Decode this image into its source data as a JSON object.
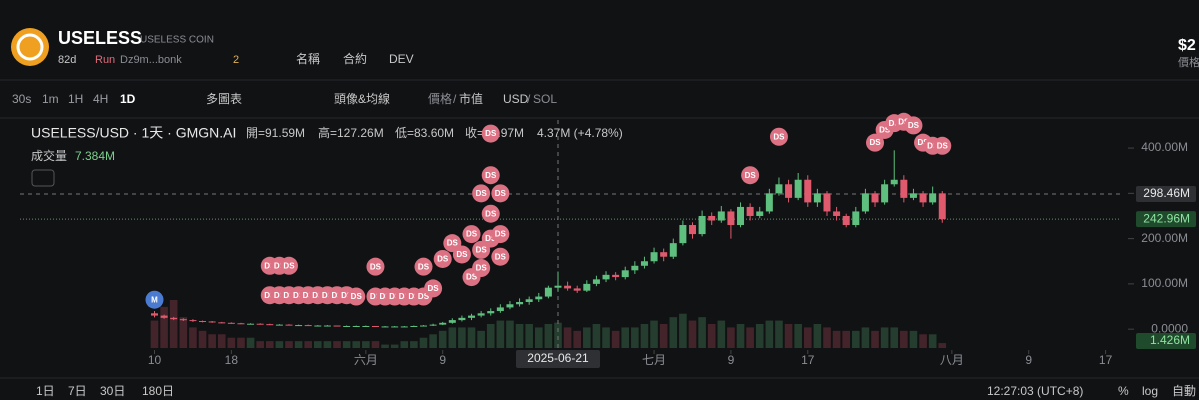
{
  "header": {
    "name": "USELESS",
    "fullname": "USELESS COIN",
    "age": "82d",
    "run": "Run",
    "address": "Dz9m...bonk",
    "holders": "2",
    "search_name": "名稱",
    "search_contract": "合約",
    "search_dev": "DEV",
    "price": "$2",
    "price_caption": "價格"
  },
  "toolbar": {
    "intervals": [
      "30s",
      "1m",
      "1H",
      "4H",
      "1D"
    ],
    "multi": "多圖表",
    "avatar": "頭像&均線",
    "price": "價格",
    "slash": "/",
    "mcap": "市值",
    "usd": "USD",
    "sol": "SOL"
  },
  "footer": {
    "ranges": [
      "1日",
      "7日",
      "30日",
      "180日"
    ],
    "time": "12:27:03 (UTC+8)",
    "percent": "%",
    "log": "log",
    "auto": "自動"
  },
  "chart_data": {
    "type": "candlestick",
    "title": "USELESS/USD · 1天 · GMGN.AI",
    "legend": {
      "open": "開=91.59M",
      "high": "高=127.26M",
      "low": "低=83.60M",
      "close": "收=95.97M",
      "change": "4.37M (+4.78%)",
      "volume_name": "成交量",
      "volume": "7.384M"
    },
    "up_color": "#5fbf7f",
    "down_color": "#e05a6e",
    "ohlc": [
      [
        35,
        40,
        26,
        30
      ],
      [
        30,
        32,
        23,
        25
      ],
      [
        25,
        27,
        20,
        22
      ],
      [
        22,
        24,
        18,
        20
      ],
      [
        20,
        22,
        16,
        18
      ],
      [
        18,
        19,
        15,
        17
      ],
      [
        17,
        18,
        14,
        15
      ],
      [
        15,
        16,
        13,
        14
      ],
      [
        14,
        15,
        12,
        13
      ],
      [
        13,
        14,
        11,
        12
      ],
      [
        12,
        13,
        11,
        12
      ],
      [
        12,
        13,
        10,
        11
      ],
      [
        11,
        12,
        9,
        10
      ],
      [
        10,
        11,
        9,
        10
      ],
      [
        10,
        11,
        8,
        9
      ],
      [
        9,
        10,
        8,
        9
      ],
      [
        9,
        10,
        7,
        8
      ],
      [
        8,
        9,
        7,
        8
      ],
      [
        8,
        9,
        7,
        8
      ],
      [
        8,
        8,
        6,
        7
      ],
      [
        7,
        8,
        6,
        7
      ],
      [
        7,
        8,
        6,
        7
      ],
      [
        7,
        8,
        6,
        7
      ],
      [
        7,
        7,
        5,
        6
      ],
      [
        6,
        7,
        5,
        6
      ],
      [
        6,
        7,
        5,
        6
      ],
      [
        6,
        7,
        5,
        6
      ],
      [
        6,
        8,
        5,
        7
      ],
      [
        7,
        9,
        6,
        8
      ],
      [
        8,
        12,
        7,
        10
      ],
      [
        10,
        16,
        9,
        14
      ],
      [
        14,
        24,
        12,
        20
      ],
      [
        20,
        30,
        17,
        25
      ],
      [
        25,
        34,
        20,
        30
      ],
      [
        30,
        40,
        26,
        35
      ],
      [
        35,
        46,
        30,
        40
      ],
      [
        40,
        55,
        36,
        48
      ],
      [
        48,
        62,
        44,
        55
      ],
      [
        55,
        68,
        50,
        60
      ],
      [
        60,
        72,
        54,
        66
      ],
      [
        66,
        80,
        60,
        72
      ],
      [
        72,
        96,
        68,
        91.59
      ],
      [
        91.59,
        127.26,
        83.6,
        95.97
      ],
      [
        95.97,
        105,
        85,
        90
      ],
      [
        90,
        96,
        80,
        85
      ],
      [
        85,
        108,
        82,
        100
      ],
      [
        100,
        118,
        95,
        110
      ],
      [
        110,
        128,
        104,
        120
      ],
      [
        120,
        126,
        108,
        115
      ],
      [
        115,
        138,
        110,
        130
      ],
      [
        130,
        150,
        122,
        140
      ],
      [
        140,
        160,
        134,
        150
      ],
      [
        150,
        180,
        145,
        170
      ],
      [
        170,
        178,
        150,
        160
      ],
      [
        160,
        200,
        155,
        190
      ],
      [
        190,
        240,
        185,
        230
      ],
      [
        230,
        236,
        200,
        210
      ],
      [
        210,
        262,
        205,
        250
      ],
      [
        250,
        258,
        230,
        240
      ],
      [
        240,
        272,
        235,
        260
      ],
      [
        260,
        265,
        200,
        230
      ],
      [
        230,
        280,
        225,
        270
      ],
      [
        270,
        278,
        240,
        250
      ],
      [
        250,
        270,
        245,
        260
      ],
      [
        260,
        310,
        255,
        300
      ],
      [
        300,
        335,
        295,
        320
      ],
      [
        320,
        330,
        280,
        290
      ],
      [
        290,
        345,
        285,
        330
      ],
      [
        330,
        340,
        270,
        280
      ],
      [
        280,
        310,
        270,
        300
      ],
      [
        300,
        305,
        250,
        260
      ],
      [
        260,
        270,
        240,
        250
      ],
      [
        250,
        255,
        225,
        230
      ],
      [
        230,
        270,
        225,
        260
      ],
      [
        260,
        310,
        255,
        300
      ],
      [
        300,
        305,
        270,
        280
      ],
      [
        280,
        330,
        275,
        320
      ],
      [
        320,
        395,
        315,
        330
      ],
      [
        330,
        340,
        280,
        290
      ],
      [
        290,
        310,
        285,
        300
      ],
      [
        300,
        305,
        270,
        280
      ],
      [
        280,
        315,
        275,
        300
      ],
      [
        300,
        305,
        235,
        242.96
      ]
    ],
    "volumes": [
      8,
      12,
      14,
      9,
      6,
      5,
      4,
      4,
      3,
      3,
      3,
      2,
      2,
      2,
      2,
      2,
      2,
      2,
      2,
      2,
      2,
      2,
      2,
      2,
      1,
      1,
      2,
      2,
      3,
      4,
      5,
      6,
      6,
      6,
      5,
      7,
      8,
      8,
      7,
      7,
      6,
      7,
      7.384,
      6,
      5,
      6,
      7,
      6,
      5,
      6,
      6,
      7,
      8,
      7,
      9,
      10,
      8,
      9,
      7,
      8,
      6,
      7,
      6,
      7,
      8,
      8,
      7,
      7,
      6,
      7,
      6,
      5,
      5,
      5,
      6,
      5,
      6,
      6,
      5,
      5,
      4,
      4,
      1.426
    ],
    "xlim": [
      -14,
      100.5
    ],
    "ylim": [
      -35,
      462
    ],
    "xticks": [
      {
        "value": 0,
        "label": "10"
      },
      {
        "value": 8,
        "label": "18"
      },
      {
        "value": 22,
        "label": "六月"
      },
      {
        "value": 30,
        "label": "9"
      },
      {
        "value": 52,
        "label": "七月"
      },
      {
        "value": 60,
        "label": "9"
      },
      {
        "value": 68,
        "label": "17"
      },
      {
        "value": 83,
        "label": "八月"
      },
      {
        "value": 91,
        "label": "9"
      },
      {
        "value": 99,
        "label": "17"
      }
    ],
    "yticks": [
      {
        "value": 0,
        "label": "0.0000"
      },
      {
        "value": 100,
        "label": "100.00M"
      },
      {
        "value": 200,
        "label": "200.00M"
      },
      {
        "value": 300,
        "label": "300.00M"
      },
      {
        "value": 400,
        "label": "400.00M"
      }
    ],
    "crosshair": {
      "x": {
        "value": 42,
        "label": "2025-06-21"
      },
      "y": {
        "value": 298.46,
        "label": "298.46M"
      }
    },
    "last_price": {
      "value": 242.96,
      "label": "242.96M"
    },
    "last_volume": {
      "value": 1.426,
      "label": "1.426M"
    },
    "markers": [
      {
        "label": "M",
        "index": 0,
        "value": 65,
        "color": "#4a7bd0"
      },
      {
        "label": "DS",
        "index": 12,
        "value": 140,
        "color": "#dc7183"
      },
      {
        "label": "DS",
        "index": 13,
        "value": 140,
        "color": "#dc7183"
      },
      {
        "label": "DS",
        "index": 14,
        "value": 140,
        "color": "#dc7183"
      },
      {
        "label": "DS",
        "index": 12,
        "value": 75,
        "color": "#dc7183"
      },
      {
        "label": "DS",
        "index": 13,
        "value": 75,
        "color": "#dc7183"
      },
      {
        "label": "DS",
        "index": 14,
        "value": 75,
        "color": "#dc7183"
      },
      {
        "label": "DS",
        "index": 15,
        "value": 75,
        "color": "#dc7183"
      },
      {
        "label": "DS",
        "index": 16,
        "value": 75,
        "color": "#dc7183"
      },
      {
        "label": "DS",
        "index": 17,
        "value": 75,
        "color": "#dc7183"
      },
      {
        "label": "DS",
        "index": 18,
        "value": 75,
        "color": "#dc7183"
      },
      {
        "label": "DS",
        "index": 19,
        "value": 75,
        "color": "#dc7183"
      },
      {
        "label": "DS",
        "index": 20,
        "value": 75,
        "color": "#dc7183"
      },
      {
        "label": "DS",
        "index": 21,
        "value": 72,
        "color": "#dc7183"
      },
      {
        "label": "DS",
        "index": 23,
        "value": 72,
        "color": "#dc7183"
      },
      {
        "label": "DS",
        "index": 24,
        "value": 72,
        "color": "#dc7183"
      },
      {
        "label": "DS",
        "index": 25,
        "value": 72,
        "color": "#dc7183"
      },
      {
        "label": "DS",
        "index": 26,
        "value": 72,
        "color": "#dc7183"
      },
      {
        "label": "DS",
        "index": 27,
        "value": 72,
        "color": "#dc7183"
      },
      {
        "label": "DS",
        "index": 28,
        "value": 72,
        "color": "#dc7183"
      },
      {
        "label": "DS",
        "index": 23,
        "value": 138,
        "color": "#dc7183"
      },
      {
        "label": "DS",
        "index": 28,
        "value": 138,
        "color": "#dc7183"
      },
      {
        "label": "DS",
        "index": 29,
        "value": 90,
        "color": "#dc7183"
      },
      {
        "label": "DS",
        "index": 30,
        "value": 155,
        "color": "#dc7183"
      },
      {
        "label": "DS",
        "index": 31,
        "value": 190,
        "color": "#dc7183"
      },
      {
        "label": "DS",
        "index": 32,
        "value": 165,
        "color": "#dc7183"
      },
      {
        "label": "DS",
        "index": 33,
        "value": 115,
        "color": "#dc7183"
      },
      {
        "label": "DS",
        "index": 33,
        "value": 210,
        "color": "#dc7183"
      },
      {
        "label": "DS",
        "index": 34,
        "value": 135,
        "color": "#dc7183"
      },
      {
        "label": "DS",
        "index": 34,
        "value": 175,
        "color": "#dc7183"
      },
      {
        "label": "DS",
        "index": 34,
        "value": 300,
        "color": "#dc7183"
      },
      {
        "label": "DS",
        "index": 35,
        "value": 200,
        "color": "#dc7183"
      },
      {
        "label": "DS",
        "index": 35,
        "value": 255,
        "color": "#dc7183"
      },
      {
        "label": "DS",
        "index": 35,
        "value": 340,
        "color": "#dc7183"
      },
      {
        "label": "DS",
        "index": 35,
        "value": 432,
        "color": "#dc7183"
      },
      {
        "label": "DS",
        "index": 36,
        "value": 300,
        "color": "#dc7183"
      },
      {
        "label": "DS",
        "index": 36,
        "value": 210,
        "color": "#dc7183"
      },
      {
        "label": "DS",
        "index": 36,
        "value": 160,
        "color": "#dc7183"
      },
      {
        "label": "DS",
        "index": 62,
        "value": 340,
        "color": "#dc7183"
      },
      {
        "label": "DS",
        "index": 65,
        "value": 425,
        "color": "#dc7183"
      },
      {
        "label": "DS",
        "index": 75,
        "value": 412,
        "color": "#dc7183"
      },
      {
        "label": "DS",
        "index": 76,
        "value": 440,
        "color": "#dc7183"
      },
      {
        "label": "DS",
        "index": 77,
        "value": 455,
        "color": "#dc7183"
      },
      {
        "label": "DS",
        "index": 78,
        "value": 458,
        "color": "#dc7183"
      },
      {
        "label": "DS",
        "index": 79,
        "value": 450,
        "color": "#dc7183"
      },
      {
        "label": "DS",
        "index": 80,
        "value": 412,
        "color": "#dc7183"
      },
      {
        "label": "DS",
        "index": 81,
        "value": 405,
        "color": "#dc7183"
      },
      {
        "label": "DS",
        "index": 82,
        "value": 405,
        "color": "#dc7183"
      }
    ]
  }
}
